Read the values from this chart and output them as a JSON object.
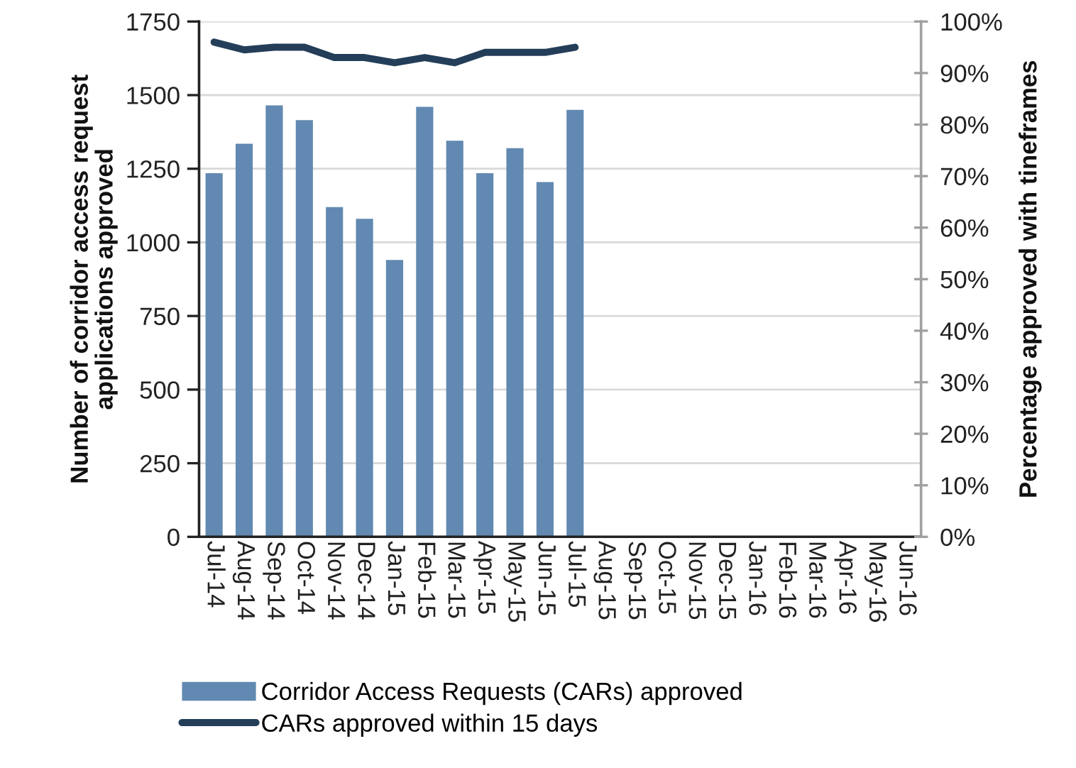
{
  "chart_data": {
    "type": "bar",
    "categories": [
      "Jul-14",
      "Aug-14",
      "Sep-14",
      "Oct-14",
      "Nov-14",
      "Dec-14",
      "Jan-15",
      "Feb-15",
      "Mar-15",
      "Apr-15",
      "May-15",
      "Jun-15",
      "Jul-15",
      "Aug-15",
      "Sep-15",
      "Oct-15",
      "Nov-15",
      "Dec-15",
      "Jan-16",
      "Feb-16",
      "Mar-16",
      "Apr-16",
      "May-16",
      "Jun-16"
    ],
    "series": [
      {
        "name": "Corridor Access Requests (CARs) approved",
        "color": "#6289b1",
        "values": [
          1235,
          1335,
          1465,
          1415,
          1120,
          1080,
          940,
          1460,
          1345,
          1235,
          1320,
          1205,
          1450,
          null,
          null,
          null,
          null,
          null,
          null,
          null,
          null,
          null,
          null,
          null
        ]
      },
      {
        "name": "CARs approved within 15 days",
        "type": "line",
        "axis": "y2",
        "color": "#243e59",
        "values": [
          96,
          94.5,
          95,
          95,
          93,
          93,
          92,
          93,
          92,
          94,
          94,
          94,
          95,
          null,
          null,
          null,
          null,
          null,
          null,
          null,
          null,
          null,
          null,
          null
        ]
      }
    ],
    "ylabel": "Number of corridor access request applications approved",
    "y2label": "Percentage approved with tineframes",
    "ylim": [
      0,
      1750
    ],
    "yticks": [
      0,
      250,
      500,
      750,
      1000,
      1250,
      1500,
      1750
    ],
    "y2lim": [
      0,
      100
    ],
    "y2ticks": [
      {
        "value": 0,
        "label": "0%"
      },
      {
        "value": 10,
        "label": "10%"
      },
      {
        "value": 20,
        "label": "20%"
      },
      {
        "value": 30,
        "label": "30%"
      },
      {
        "value": 40,
        "label": "40%"
      },
      {
        "value": 50,
        "label": "50%"
      },
      {
        "value": 60,
        "label": "60%"
      },
      {
        "value": 70,
        "label": "70%"
      },
      {
        "value": 80,
        "label": "80%"
      },
      {
        "value": 90,
        "label": "90%"
      },
      {
        "value": 100,
        "label": "100%"
      }
    ],
    "grid": "y",
    "legend": "bottom"
  }
}
